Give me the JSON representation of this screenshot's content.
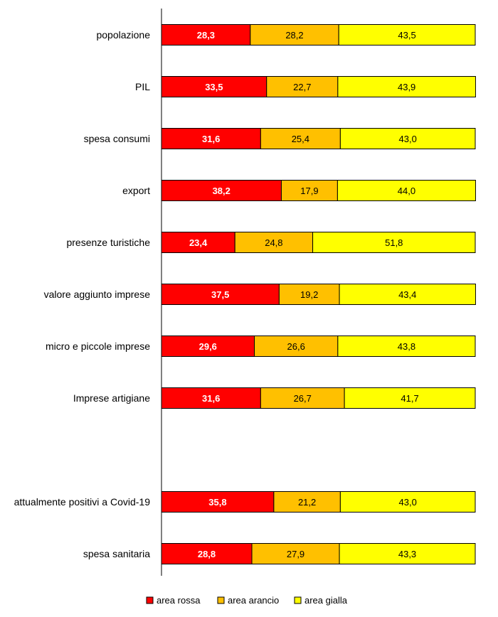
{
  "chart_data": {
    "type": "bar",
    "orientation": "horizontal",
    "stacked": true,
    "title": "",
    "xlabel": "",
    "ylabel": "",
    "xlim": [
      0,
      100
    ],
    "grid": false,
    "legend_position": "bottom",
    "categories": [
      "popolazione",
      "PIL",
      "spesa consumi",
      "export",
      "presenze turistiche",
      "valore aggiunto imprese",
      "micro e piccole imprese",
      "Imprese artigiane",
      "",
      "attualmente positivi a Covid-19",
      "spesa sanitaria"
    ],
    "series": [
      {
        "name": "area rossa",
        "color": "#ff0000",
        "label_color": "#ffffff",
        "values": [
          28.3,
          33.5,
          31.6,
          38.2,
          23.4,
          37.5,
          29.6,
          31.6,
          null,
          35.8,
          28.8
        ],
        "labels": [
          "28,3",
          "33,5",
          "31,6",
          "38,2",
          "23,4",
          "37,5",
          "29,6",
          "31,6",
          "",
          "35,8",
          "28,8"
        ]
      },
      {
        "name": "area arancio",
        "color": "#ffc000",
        "label_color": "#000000",
        "values": [
          28.2,
          22.7,
          25.4,
          17.9,
          24.8,
          19.2,
          26.6,
          26.7,
          null,
          21.2,
          27.9
        ],
        "labels": [
          "28,2",
          "22,7",
          "25,4",
          "17,9",
          "24,8",
          "19,2",
          "26,6",
          "26,7",
          "",
          "21,2",
          "27,9"
        ]
      },
      {
        "name": "area gialla",
        "color": "#ffff00",
        "label_color": "#000000",
        "values": [
          43.5,
          43.9,
          43.0,
          44.0,
          51.8,
          43.4,
          43.8,
          41.7,
          null,
          43.0,
          43.3
        ],
        "labels": [
          "43,5",
          "43,9",
          "43,0",
          "44,0",
          "51,8",
          "43,4",
          "43,8",
          "41,7",
          "",
          "43,0",
          "43,3"
        ]
      }
    ]
  }
}
